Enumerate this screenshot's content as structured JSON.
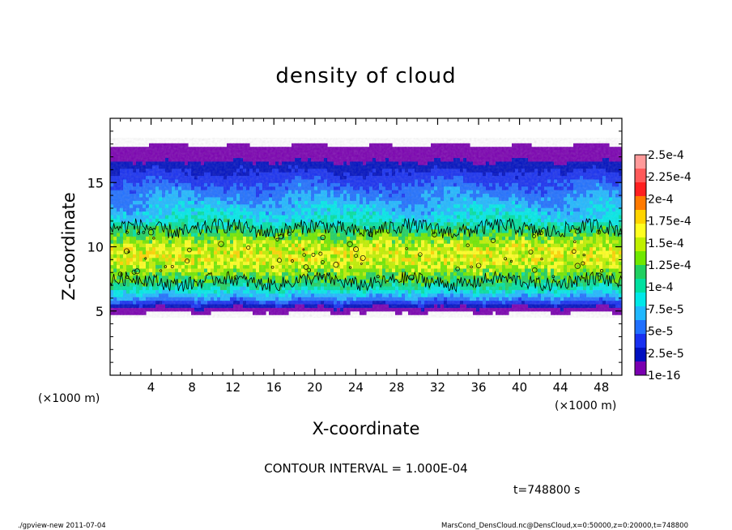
{
  "chart_data": {
    "type": "heatmap",
    "title": "density of cloud",
    "xlabel": "X-coordinate",
    "ylabel": "Z-coordinate",
    "x_unit": "(×1000 m)",
    "y_unit": "(×1000 m)",
    "xlim": [
      0,
      50
    ],
    "ylim": [
      0,
      20
    ],
    "x_ticks": [
      4,
      8,
      12,
      16,
      20,
      24,
      28,
      32,
      36,
      40,
      44,
      48
    ],
    "y_ticks": [
      5,
      10,
      15
    ],
    "colorbar": {
      "labels": [
        "2.5e-4",
        "2.25e-4",
        "2e-4",
        "1.75e-4",
        "1.5e-4",
        "1.25e-4",
        "1e-4",
        "7.5e-5",
        "5e-5",
        "2.5e-5",
        "1e-16"
      ],
      "colors": [
        "#ff9a9a",
        "#ff5a5a",
        "#ff2020",
        "#ff7a00",
        "#ffd400",
        "#ffff20",
        "#c0f000",
        "#70e800",
        "#20d060",
        "#00e0a0",
        "#00e8e8",
        "#20b8ff",
        "#2070ff",
        "#1830f0",
        "#0010c0",
        "#7a00b0"
      ]
    },
    "contour_interval": "CONTOUR INTERVAL = 1.000E-04",
    "time_label": "t=748800 s",
    "footer_left": "./gpview-new  2011-07-04",
    "footer_right": "MarsCond_DensCloud.nc@DensCloud,x=0:50000,z=0:20000,t=748800",
    "field_profile": {
      "z": [
        4.9,
        5.3,
        6.0,
        7.0,
        8.0,
        9.0,
        10.0,
        11.0,
        12.0,
        13.0,
        14.0,
        15.0,
        16.0,
        16.7,
        17.3,
        17.9
      ],
      "density": [
        1e-16,
        1.5e-05,
        6e-05,
        0.000105,
        0.000135,
        0.00016,
        0.000155,
        0.000125,
        9e-05,
        7.5e-05,
        6e-05,
        4.5e-05,
        3e-05,
        1.5e-05,
        5e-06,
        1e-16
      ]
    }
  }
}
